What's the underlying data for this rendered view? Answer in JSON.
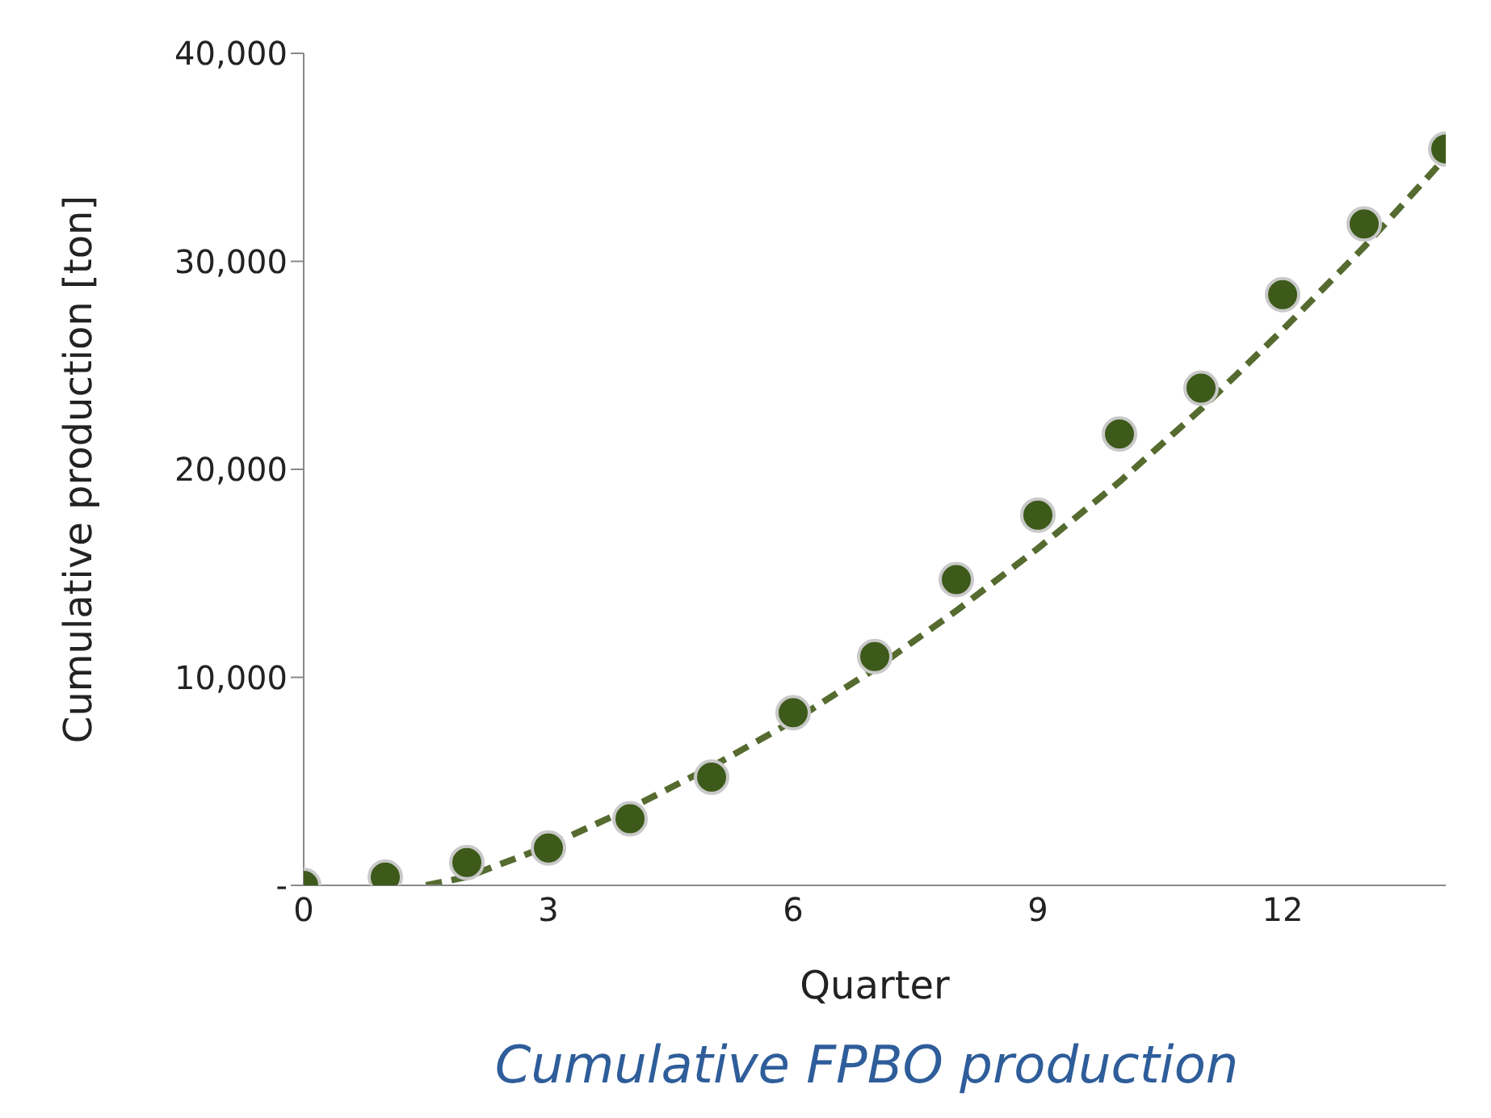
{
  "chart_data": {
    "type": "scatter",
    "title": "Cumulative FPBO production",
    "xlabel": "Quarter",
    "ylabel": "Cumulative production [ton]",
    "xlim": [
      0,
      14
    ],
    "xticks": [
      0,
      3,
      6,
      9,
      12
    ],
    "ylim": [
      0,
      40000
    ],
    "yticks": [
      {
        "value": 0,
        "label": "-"
      },
      {
        "value": 10000,
        "label": "10,000"
      },
      {
        "value": 20000,
        "label": "20,000"
      },
      {
        "value": 30000,
        "label": "30,000"
      },
      {
        "value": 40000,
        "label": "40,000"
      }
    ],
    "grid": false,
    "legend": false,
    "series": [
      {
        "type": "scatter",
        "color": "#3d5a1a",
        "marker": "circle",
        "x": [
          0,
          1,
          2,
          3,
          4,
          5,
          6,
          7,
          8,
          9,
          10,
          11,
          12,
          13,
          14
        ],
        "values": [
          0,
          400,
          1100,
          1800,
          3200,
          5200,
          8300,
          11000,
          14700,
          17800,
          21700,
          23900,
          28400,
          31800,
          35400
        ]
      },
      {
        "type": "line",
        "color": "#556b2f",
        "marker": "none",
        "line_style": "dashed",
        "x": [
          1.5,
          2,
          3,
          4,
          5,
          6,
          7,
          8,
          9,
          10,
          11,
          12,
          13,
          14
        ],
        "values": [
          0,
          400,
          1900,
          3700,
          5700,
          7900,
          10400,
          13200,
          16200,
          19400,
          22900,
          26700,
          30700,
          35000
        ]
      }
    ]
  }
}
